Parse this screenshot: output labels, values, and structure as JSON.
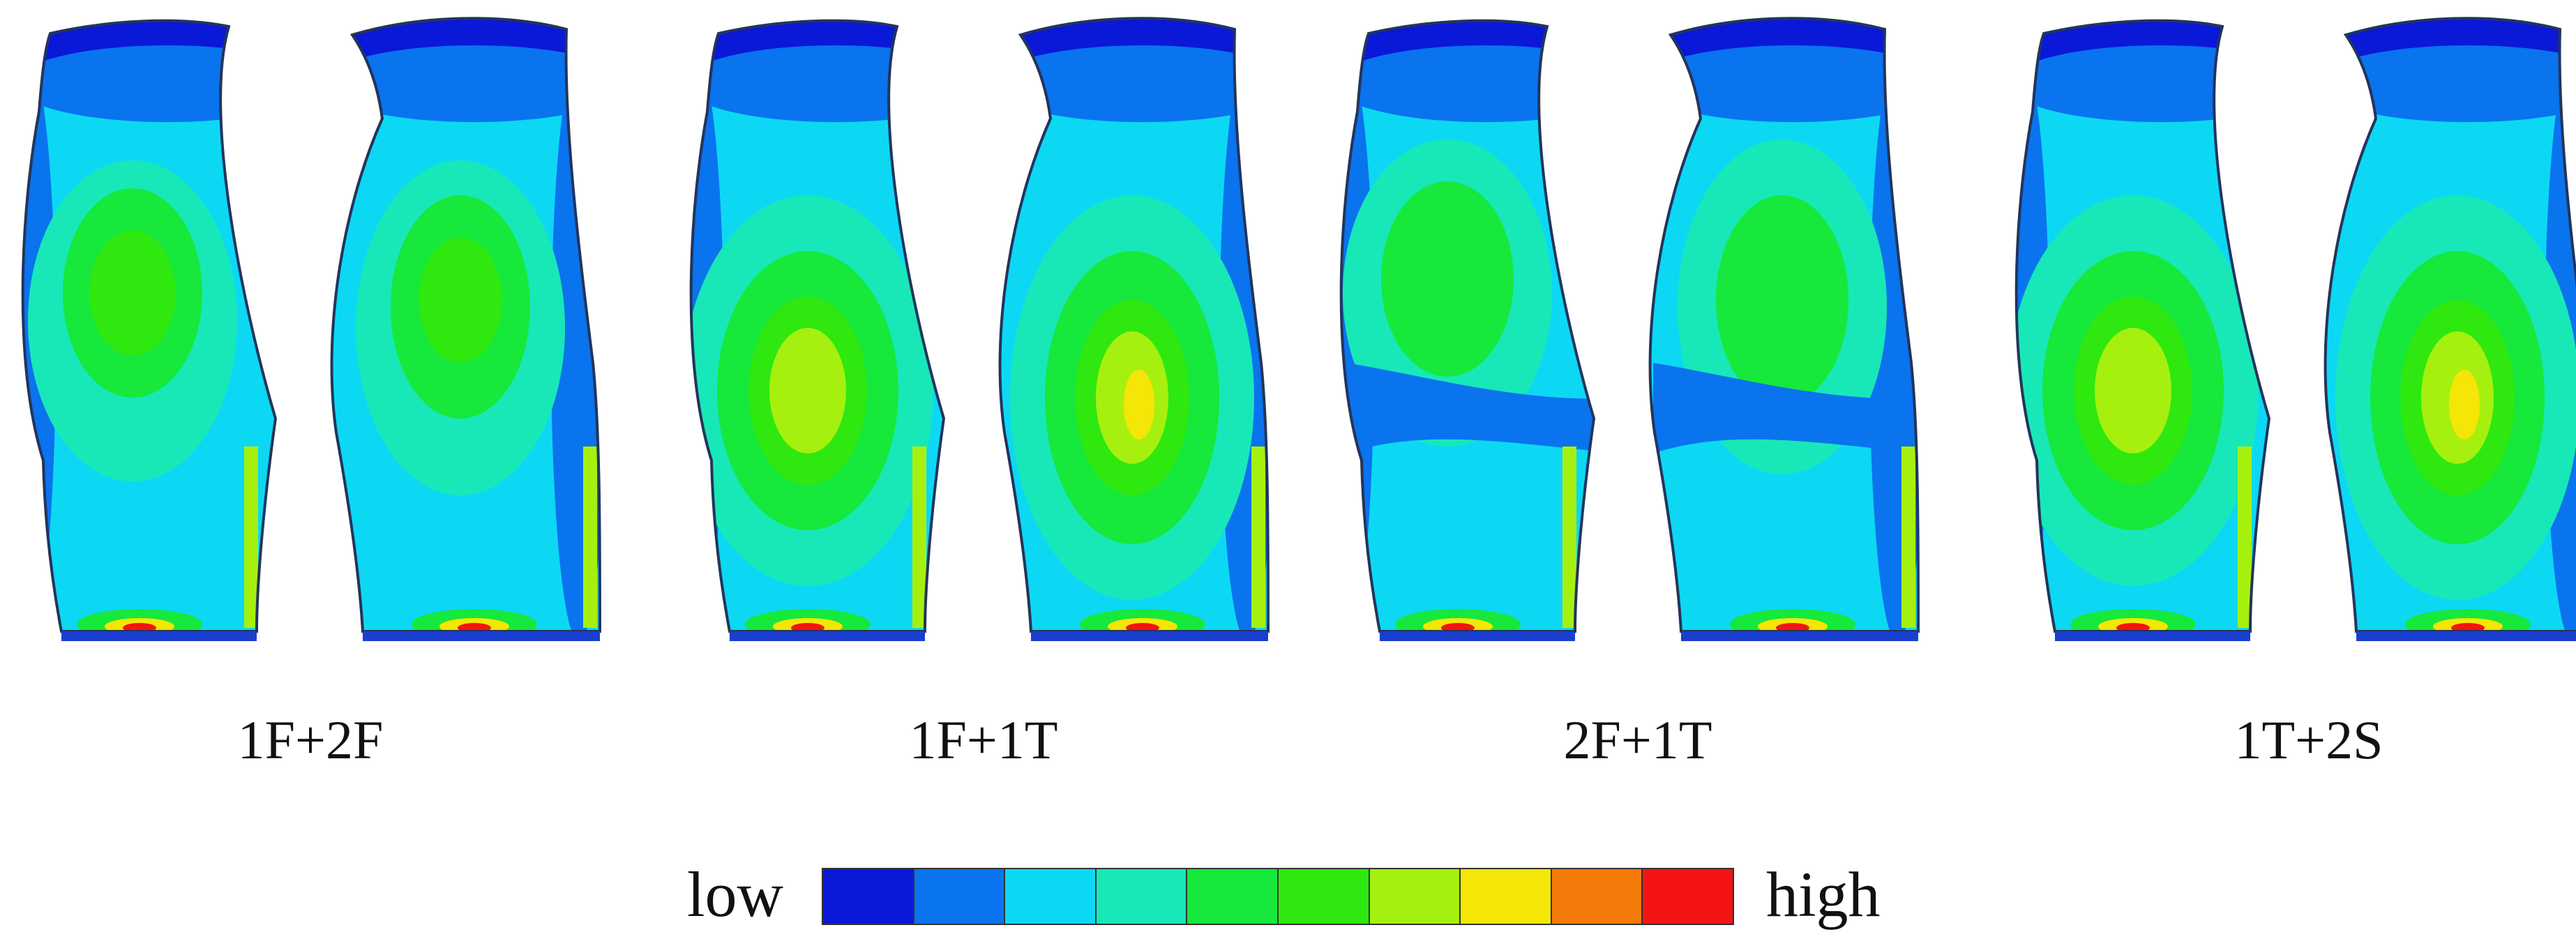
{
  "colors": {
    "scale": [
      "#0a18d8",
      "#0a73ee",
      "#0cd8f4",
      "#18e8b8",
      "#16e83c",
      "#2ee810",
      "#a6f010",
      "#f4e606",
      "#f47a0a",
      "#f41414"
    ],
    "outline": "#23355b",
    "base": "#1a3fcf"
  },
  "panels": [
    {
      "label": "1F+2F",
      "mode": "1F+2F"
    },
    {
      "label": "1F+1T",
      "mode": "1F+1T"
    },
    {
      "label": "2F+1T",
      "mode": "2F+1T"
    },
    {
      "label": "1T+2S",
      "mode": "1T+2S"
    }
  ],
  "legend": {
    "low": "low",
    "high": "high"
  }
}
